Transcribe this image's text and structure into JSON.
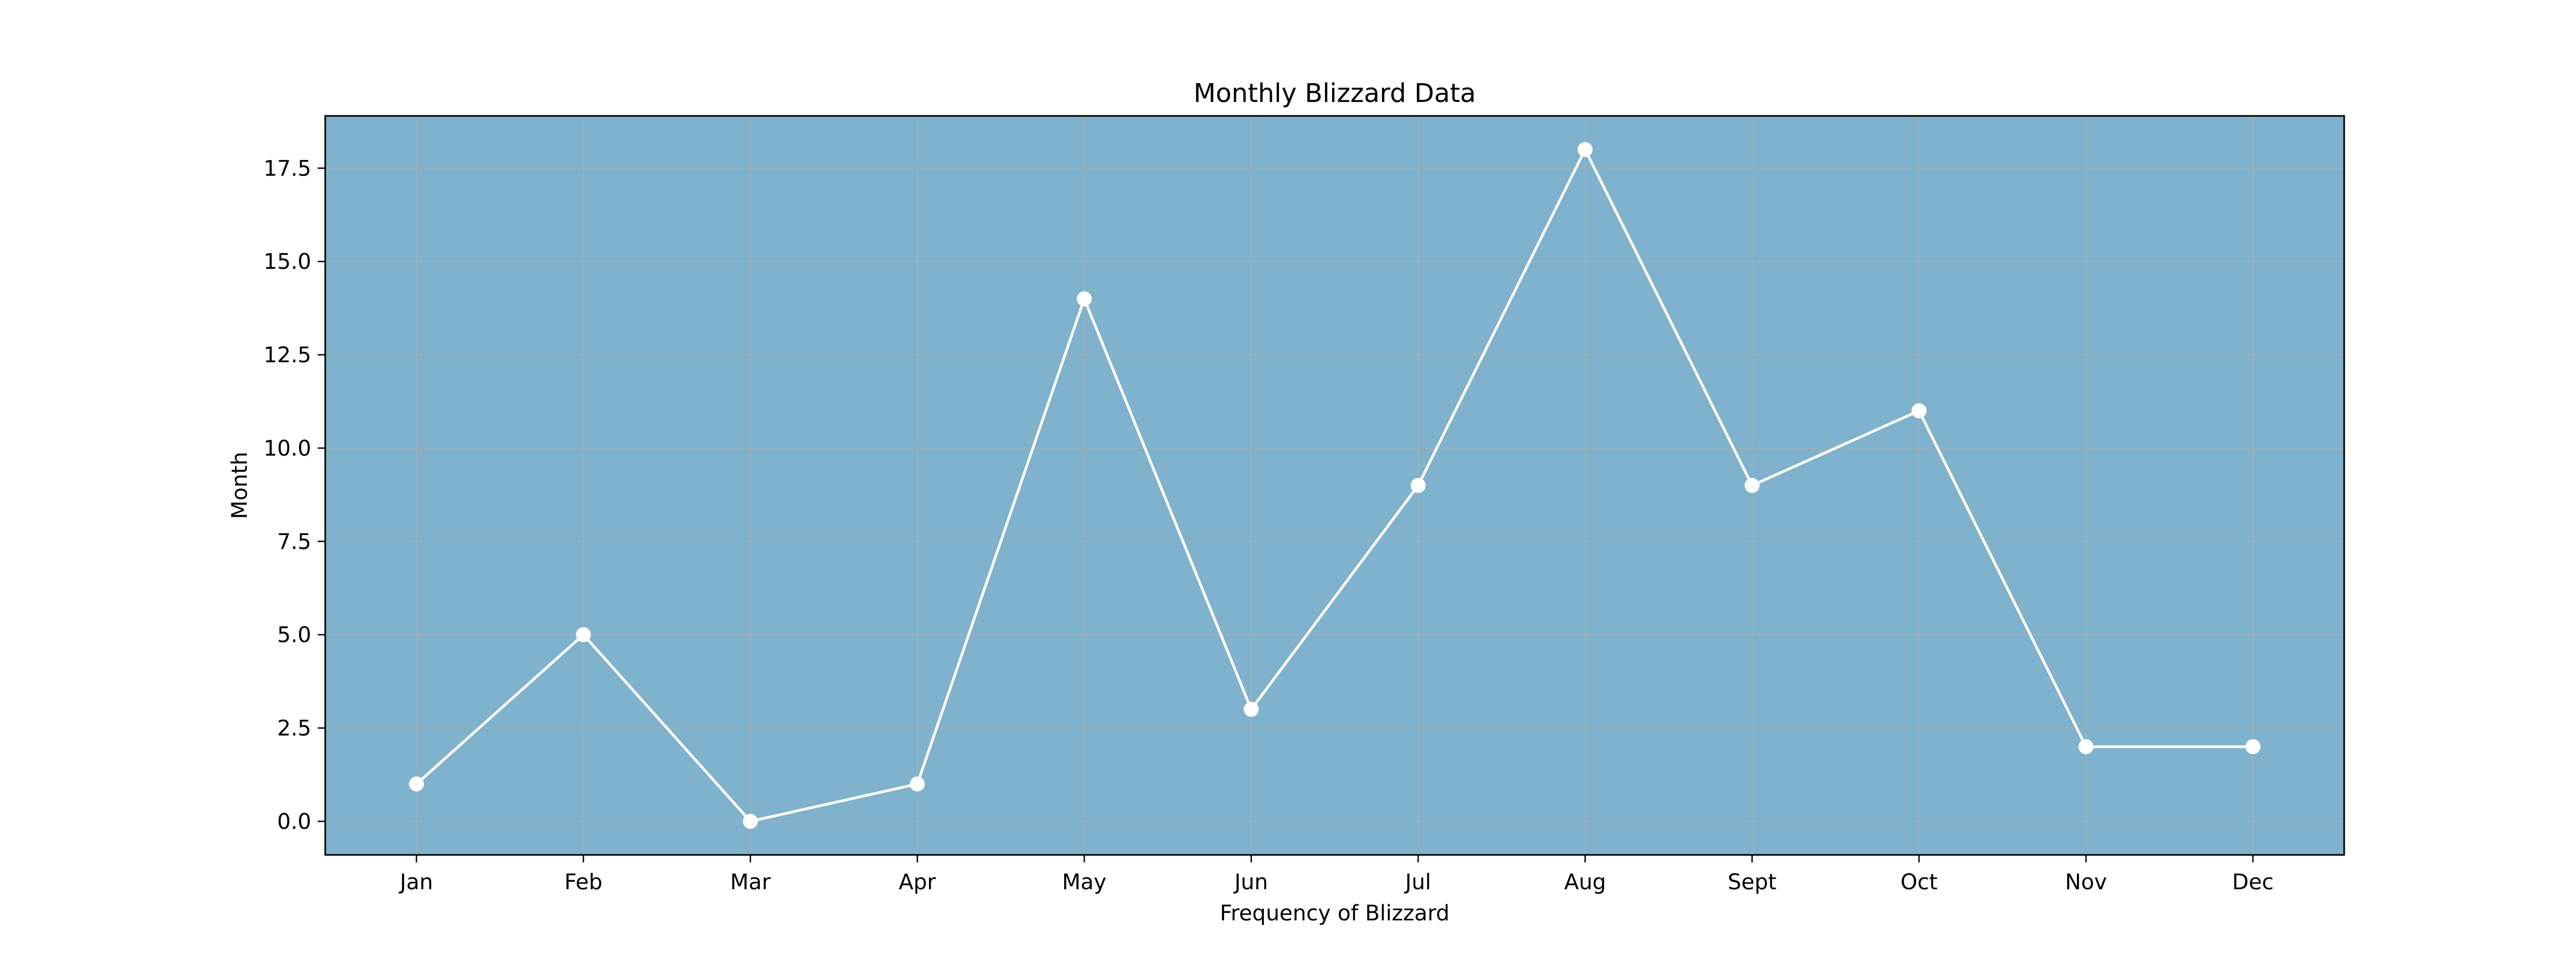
{
  "chart_data": {
    "type": "line",
    "title": "Monthly Blizzard Data",
    "xlabel": "Frequency of Blizzard",
    "ylabel": "Month",
    "categories": [
      "Jan",
      "Feb",
      "Mar",
      "Apr",
      "May",
      "Jun",
      "Jul",
      "Aug",
      "Sept",
      "Oct",
      "Nov",
      "Dec"
    ],
    "series": [
      {
        "values": [
          1,
          5,
          0,
          1,
          14,
          3,
          9,
          18,
          9,
          11,
          2,
          2
        ]
      }
    ],
    "ylim": [
      -0.9,
      18.9
    ],
    "yticks": [
      0.0,
      2.5,
      5.0,
      7.5,
      10.0,
      12.5,
      15.0,
      17.5
    ],
    "ytick_labels": [
      "0.0",
      "2.5",
      "5.0",
      "7.5",
      "10.0",
      "12.5",
      "15.0",
      "17.5"
    ],
    "grid": true,
    "line_color": "#ffffff",
    "marker_color": "#ffffff",
    "background_color": "#7fb2cc"
  }
}
